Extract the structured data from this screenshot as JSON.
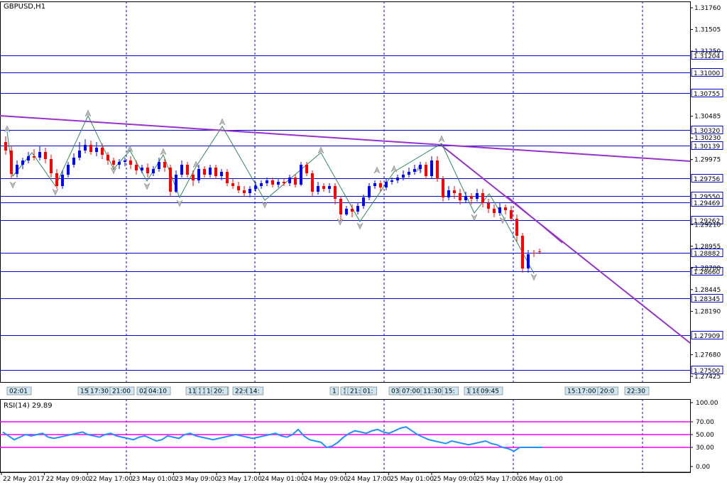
{
  "chart": {
    "symbol_label": "GBPUSD,H1",
    "rsi_label": "RSI(14) 29.89",
    "price_ticks": [
      "1.31760",
      "1.31505",
      "1.31250",
      "1.30485",
      "1.30230",
      "1.29975",
      "1.29210",
      "1.28955",
      "1.28700",
      "1.28445",
      "1.28190",
      "1.27680",
      "1.27425"
    ],
    "level_labels": [
      "1.31204",
      "1.31000",
      "1.30755",
      "1.30320",
      "1.30139",
      "1.29756",
      "1.29550",
      "1.29469",
      "1.29262",
      "1.28882",
      "1.28660",
      "1.28345",
      "1.27909",
      "1.27500"
    ],
    "rsi_ticks": [
      "100.00",
      "70.00",
      "50.00",
      "30.00",
      "0.00"
    ],
    "time_labels": [
      "22 May 2017",
      "22 May 09:00",
      "22 May 17:00",
      "23 May 01:00",
      "23 May 09:00",
      "23 May 17:00",
      "24 May 01:00",
      "24 May 09:00",
      "24 May 17:00",
      "25 May 01:00",
      "25 May 09:00",
      "25 May 17:00",
      "26 May 01:00"
    ],
    "swing_time_tags": [
      "02:01",
      "15:",
      "17:30",
      "21:00",
      "02:",
      "04:10",
      "11:",
      "1",
      "1",
      "16:00",
      "20:",
      "22:00",
      "14:",
      "1",
      "17:30",
      "2",
      "21:00",
      "01:",
      "03:00",
      "07:00",
      "11:30",
      "15:",
      "1",
      "18:00",
      "09:45",
      "15:17:00",
      "20:0",
      "22:30"
    ],
    "colors": {
      "up": "#0000ff",
      "down": "#ff0000",
      "level": "#0000cd",
      "trendline": "#9932cc",
      "zigzag": "#2e8b57",
      "rsi": "#1e90ff",
      "rsi_levels": "#ff00ff"
    }
  }
}
